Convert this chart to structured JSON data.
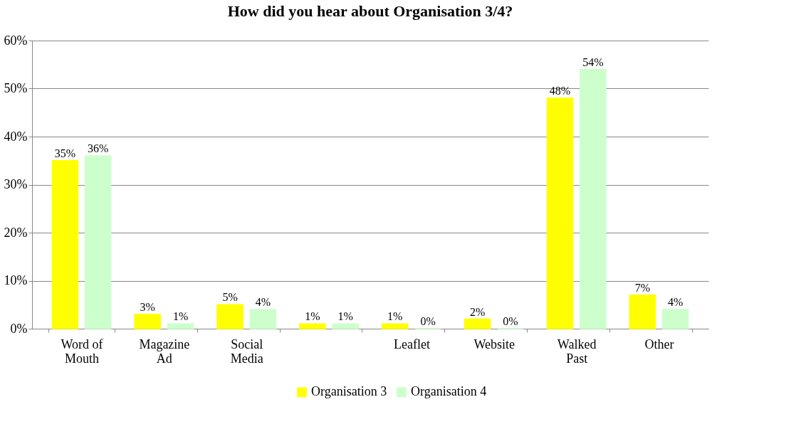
{
  "chart_data": {
    "type": "bar",
    "title": "How did you hear about Organisation 3/4?",
    "categories": [
      "Word of Mouth",
      "Magazine Ad",
      "Social Media",
      null,
      "Leaflet",
      "Website",
      "Walked Past",
      "Other"
    ],
    "series": [
      {
        "name": "Organisation 3",
        "color": "#ffff00",
        "values": [
          35,
          3,
          5,
          1,
          1,
          2,
          48,
          7
        ],
        "value_labels": [
          "35%",
          "3%",
          "5%",
          "1%",
          "1%",
          "2%",
          "48%",
          "7%"
        ]
      },
      {
        "name": "Organisation 4",
        "color": "#ccffcc",
        "values": [
          36,
          1,
          4,
          1,
          0,
          0,
          54,
          4
        ],
        "value_labels": [
          "36%",
          "1%",
          "4%",
          "1%",
          "0%",
          "0%",
          "54%",
          "4%"
        ]
      }
    ],
    "ylim": [
      0,
      60
    ],
    "yticks": [
      {
        "value": 0,
        "label": "0%"
      },
      {
        "value": 10,
        "label": "10%"
      },
      {
        "value": 20,
        "label": "20%"
      },
      {
        "value": 30,
        "label": "30%"
      },
      {
        "value": 40,
        "label": "40%"
      },
      {
        "value": 50,
        "label": "50%"
      },
      {
        "value": 60,
        "label": "60%"
      }
    ],
    "grid": "y",
    "legend": "bottom"
  }
}
